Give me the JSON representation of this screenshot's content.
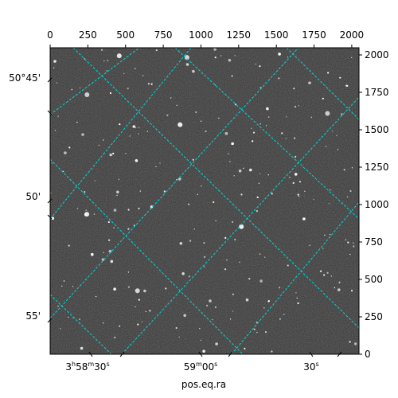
{
  "figure": {
    "top_ticks": [
      "0",
      "250",
      "500",
      "750",
      "1000",
      "1250",
      "1500",
      "1750",
      "2000"
    ],
    "right_ticks": [
      "0",
      "250",
      "500",
      "750",
      "1000",
      "1250",
      "1500",
      "1750",
      "2000"
    ],
    "dec_labels": [
      "50°45'",
      "50'",
      "55'"
    ],
    "ra_labels": [
      {
        "base": "3",
        "sup_h": "h",
        "mid": "58",
        "sup_m": "m",
        "sec": "30",
        "sup_s": "s"
      },
      {
        "base": "",
        "sup_h": "",
        "mid": "59",
        "sup_m": "m",
        "sec": "00",
        "sup_s": "s"
      },
      {
        "base": "",
        "sup_h": "",
        "mid": "",
        "sup_m": "",
        "sec": "30",
        "sup_s": "s"
      }
    ],
    "xlabel": "pos.eq.ra",
    "grid_color": "#00d8d8",
    "image_background": "#6e6e6e",
    "star_color": "#ffffff"
  },
  "chart_data": {
    "type": "image",
    "title": "",
    "xlabel": "pos.eq.ra",
    "ylabel": "",
    "pixel_axis_top": {
      "ticks": [
        0,
        250,
        500,
        750,
        1000,
        1250,
        1500,
        1750,
        2000
      ],
      "range": [
        0,
        2048
      ]
    },
    "pixel_axis_right": {
      "ticks": [
        0,
        250,
        500,
        750,
        1000,
        1250,
        1500,
        1750,
        2000
      ],
      "range": [
        0,
        2048
      ]
    },
    "world_grid": "on",
    "ra_tick_labels": [
      "3h58m30s",
      "59m00s",
      "30s"
    ],
    "dec_tick_labels": [
      "50°45'",
      "50'",
      "55'"
    ]
  }
}
